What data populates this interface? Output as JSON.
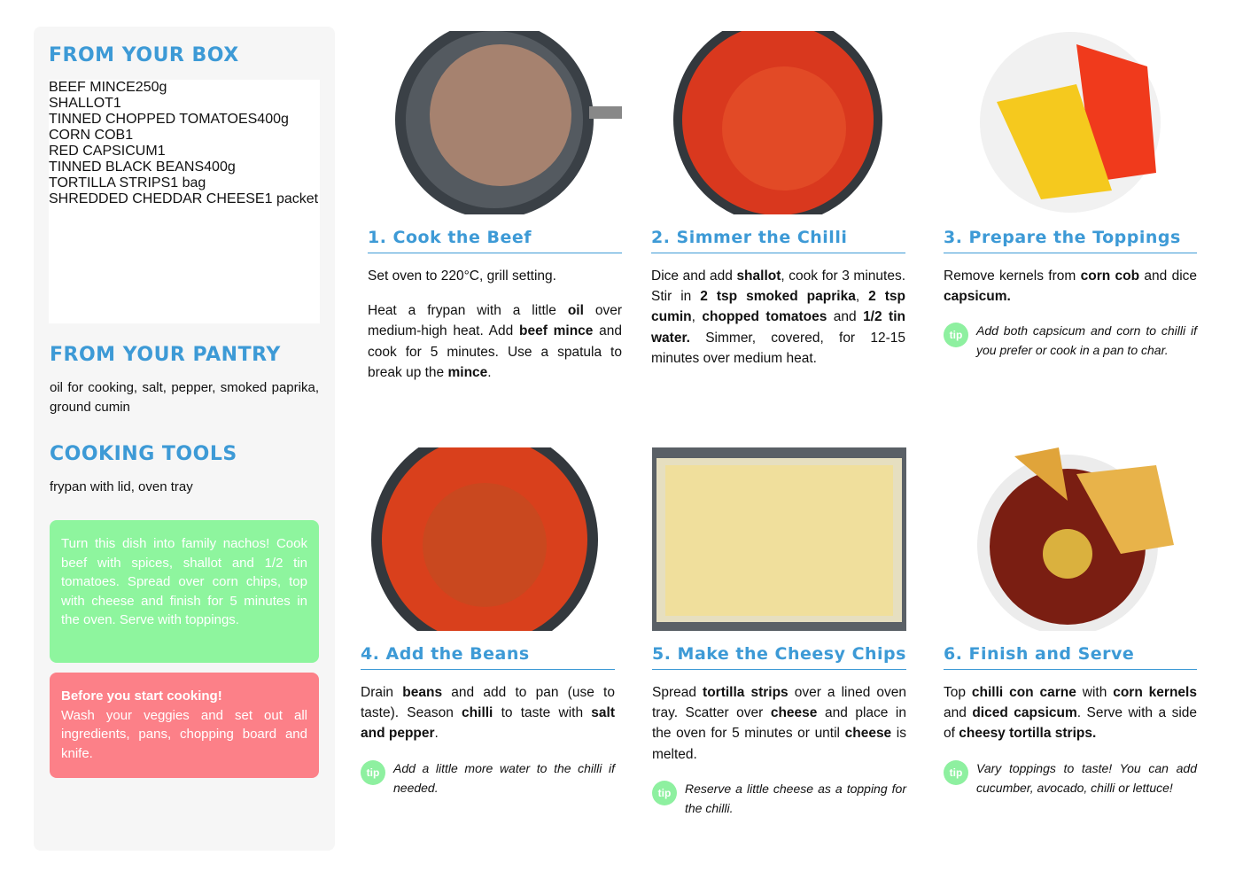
{
  "sidebar": {
    "box": {
      "title": "FROM YOUR BOX",
      "items": [
        [
          "BEEF MINCE",
          "250g"
        ],
        [
          "SHALLOT",
          "1"
        ],
        [
          "TINNED CHOPPED TOMATOES",
          "400g"
        ],
        [
          "CORN COB",
          "1"
        ],
        [
          "RED CAPSICUM",
          "1"
        ],
        [
          "TINNED BLACK BEANS",
          "400g"
        ],
        [
          "TORTILLA STRIPS",
          "1 bag"
        ],
        [
          "SHREDDED CHEDDAR CHEESE",
          "1 packet"
        ]
      ]
    },
    "pantry": {
      "title": "FROM YOUR PANTRY",
      "text": "oil for cooking, salt, pepper, smoked paprika, ground cumin"
    },
    "tools": {
      "title": "COOKING TOOLS",
      "text": "frypan with lid, oven tray"
    },
    "tip": "Turn this dish into family nachos! Cook beef with spices, shallot and 1/2 tin tomatoes. Spread over corn chips, top with cheese and finish for 5 minutes in the oven. Serve with toppings.",
    "warning": {
      "title": "Before you start cooking!",
      "text": "Wash your veggies and set out all ingredients, pans, chopping board and knife."
    }
  },
  "steps": [
    {
      "title": "1. Cook the Beef",
      "paragraphs": [
        [
          "Set oven to 220°C, grill setting."
        ],
        [
          "Heat a frypan with a little ",
          {
            "bold": "oil"
          },
          " over medium-high heat. Add ",
          {
            "bold": "beef mince"
          },
          " and cook for 5 minutes. Use a spatula to break up the ",
          {
            "bold": "mince"
          },
          "."
        ]
      ]
    },
    {
      "title": "2. Simmer the Chilli",
      "paragraphs": [
        [
          "Dice and add ",
          {
            "bold": "shallot"
          },
          ", cook for 3 minutes. Stir in ",
          {
            "bold": "2 tsp smoked paprika"
          },
          ", ",
          {
            "bold": "2 tsp cumin"
          },
          ", ",
          {
            "bold": "chopped tomatoes"
          },
          " and ",
          {
            "bold": "1/2 tin water."
          },
          " Simmer, covered, for 12-15 minutes over medium heat."
        ]
      ]
    },
    {
      "title": "3. Prepare the Toppings",
      "paragraphs": [
        [
          "Remove kernels from ",
          {
            "bold": "corn cob"
          },
          " and dice ",
          {
            "bold": "capsicum."
          }
        ]
      ],
      "tip": {
        "label": "tip",
        "text": "Add both capsicum and corn to chilli if you prefer or cook in a pan to char."
      }
    },
    {
      "title": "4. Add the Beans",
      "paragraphs": [
        [
          "Drain ",
          {
            "bold": "beans"
          },
          " and add to pan (use to taste). Season ",
          {
            "bold": "chilli"
          },
          " to taste with ",
          {
            "bold": "salt and pepper"
          },
          "."
        ]
      ],
      "tip": {
        "label": "tip",
        "text": "Add a little more water to the chilli if needed."
      }
    },
    {
      "title": "5. Make the Cheesy Chips",
      "paragraphs": [
        [
          "Spread ",
          {
            "bold": "tortilla strips"
          },
          " over a lined oven tray. Scatter over ",
          {
            "bold": "cheese"
          },
          " and place in the oven for 5 minutes or until ",
          {
            "bold": "cheese"
          },
          " is melted."
        ]
      ],
      "tip": {
        "label": "tip",
        "text": "Reserve a little cheese as a topping for the chilli."
      }
    },
    {
      "title": "6. Finish and Serve",
      "paragraphs": [
        [
          "Top ",
          {
            "bold": "chilli con carne"
          },
          " with ",
          {
            "bold": "corn kernels"
          },
          " and ",
          {
            "bold": "diced capsicum"
          },
          ". Serve with a side of ",
          {
            "bold": "cheesy tortilla strips."
          }
        ]
      ],
      "tip": {
        "label": "tip",
        "text": "Vary toppings to taste! You can add cucumber, avocado, chilli or lettuce!"
      }
    }
  ]
}
